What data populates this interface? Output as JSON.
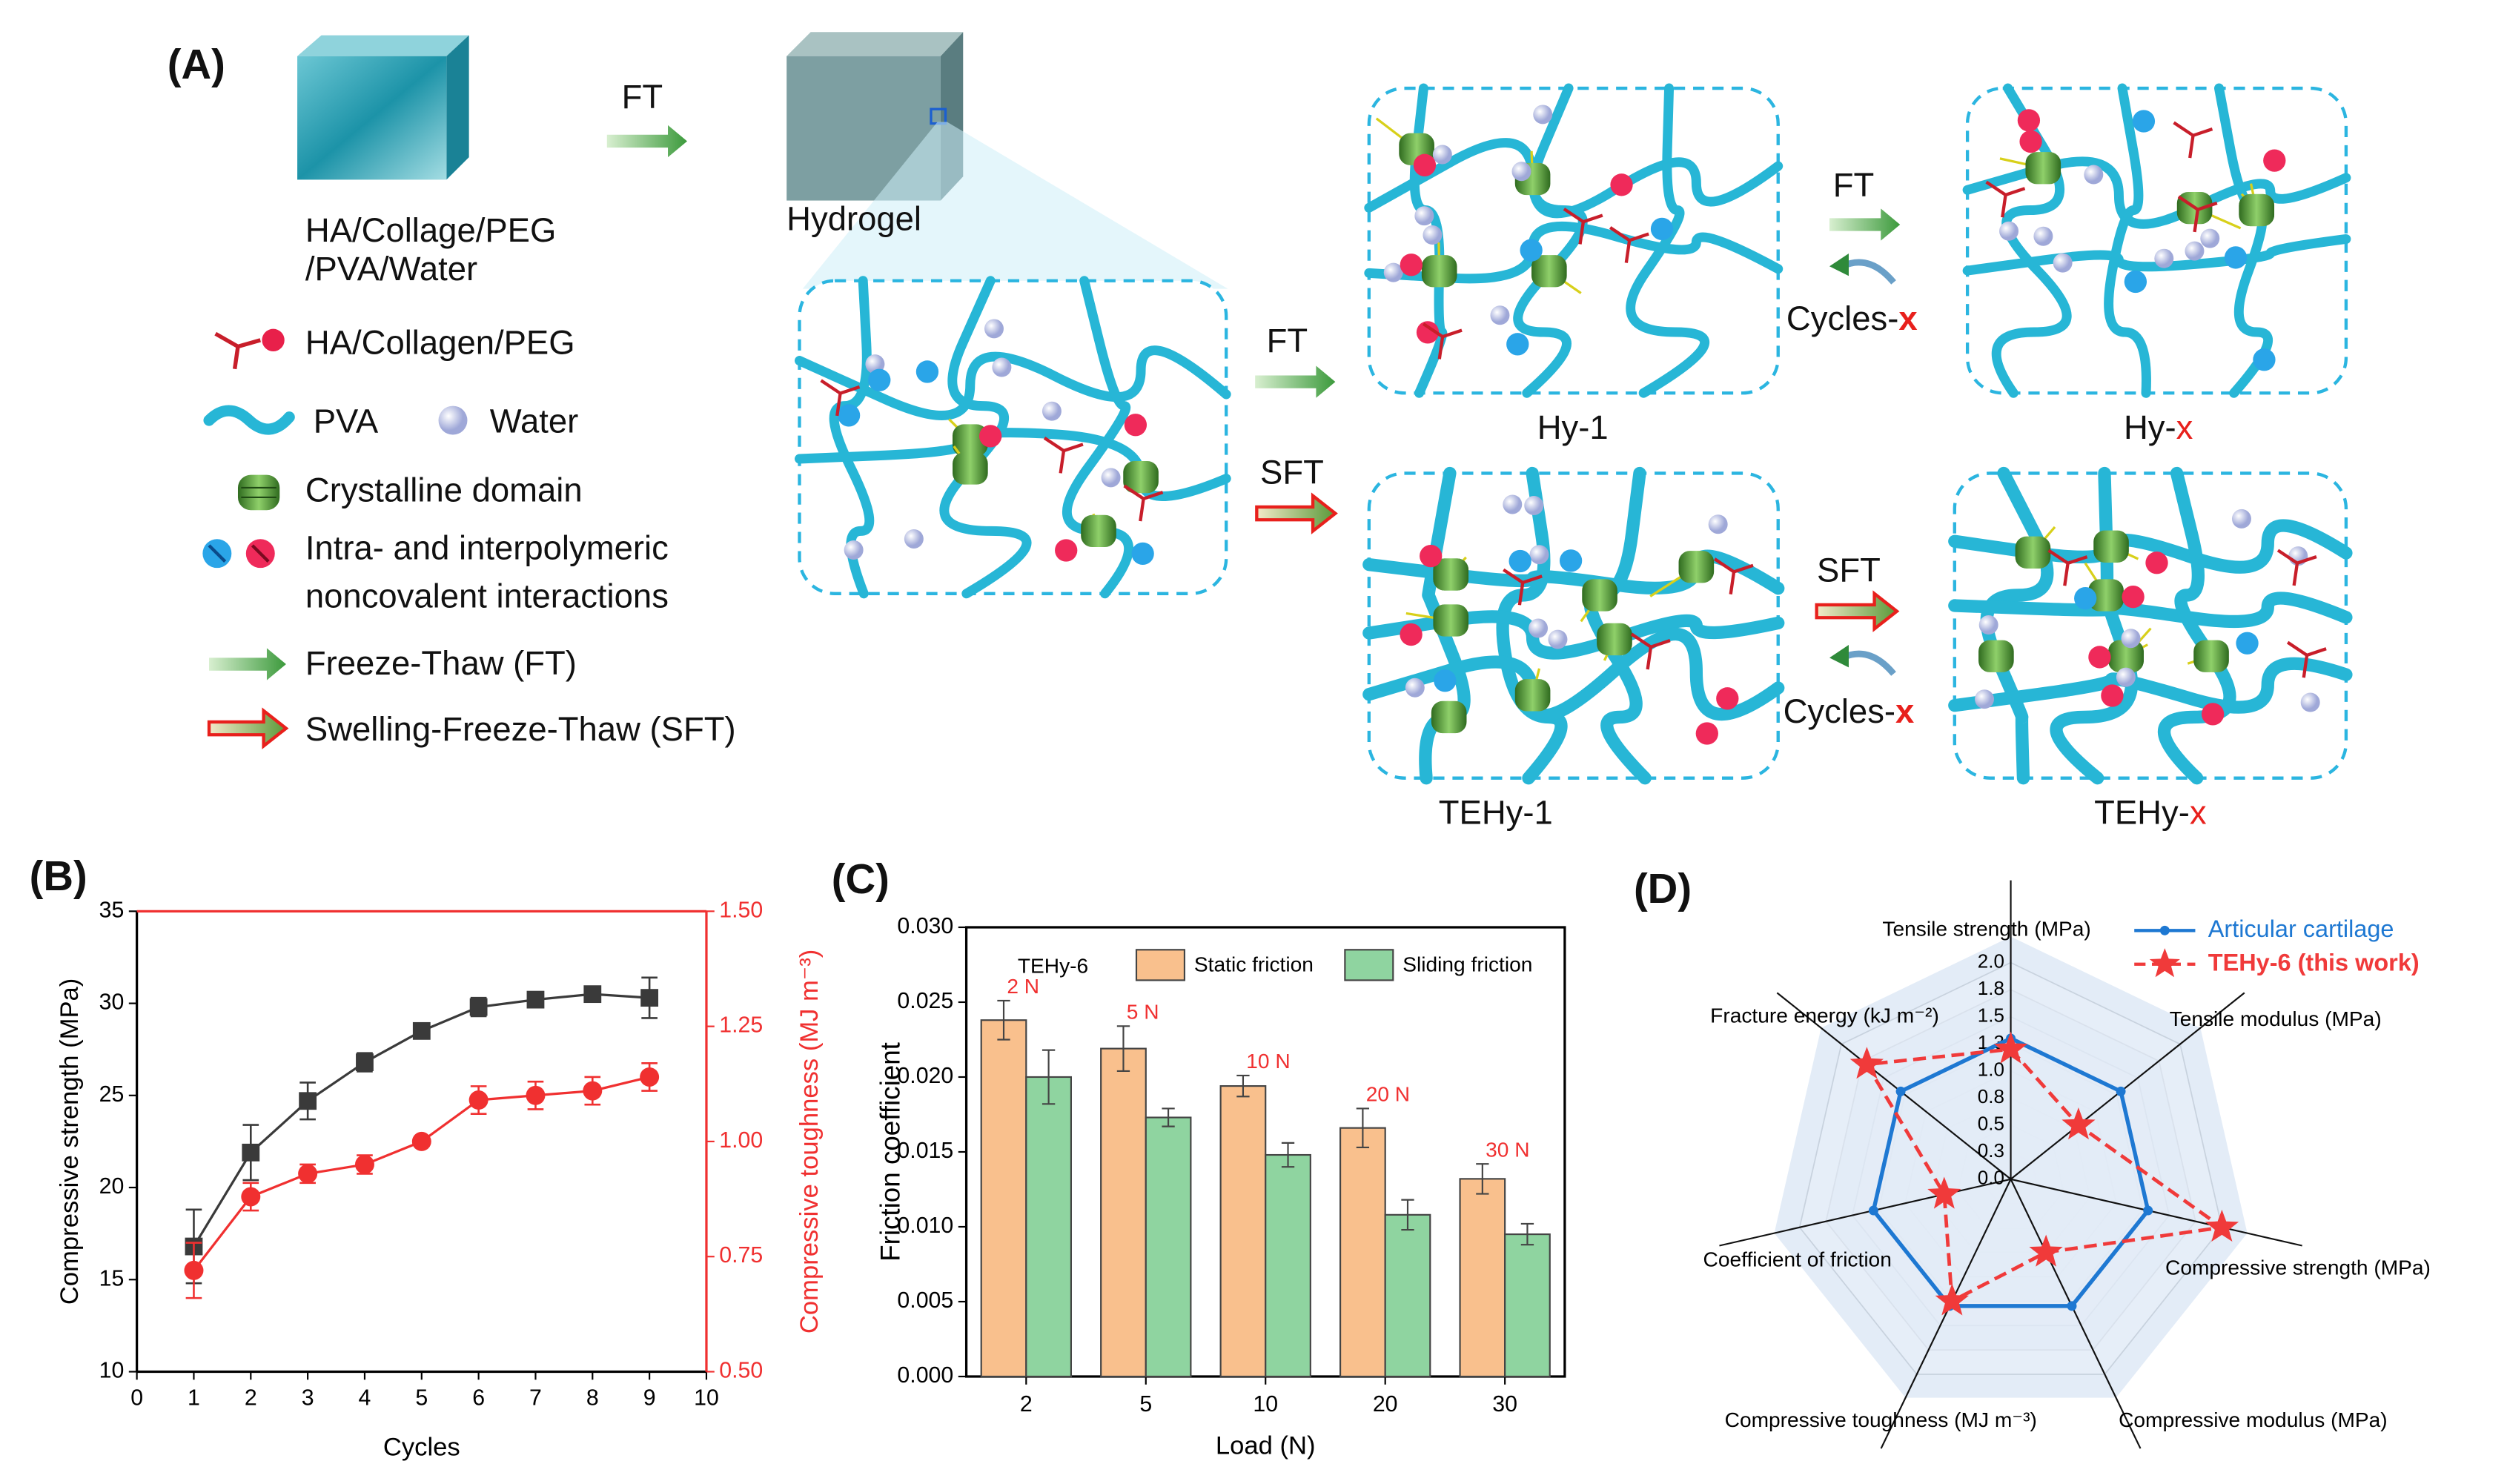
{
  "panel_labels": [
    "(A)",
    "(B)",
    "(C)",
    "(D)"
  ],
  "diagram": {
    "precursor": [
      "HA/Collage/PEG",
      "/PVA/Water"
    ],
    "hydrogel": "Hydrogel",
    "step_ft": "FT",
    "branch_ft": "FT",
    "branch_sft": "SFT",
    "legend": {
      "ha": "HA/Collagen/PEG",
      "pva": "PVA",
      "water": "Water",
      "crystal": "Crystalline domain",
      "interactions": [
        "Intra- and interpolymeric",
        "noncovalent interactions"
      ],
      "ft": "Freeze-Thaw (FT)",
      "sft": "Swelling-Freeze-Thaw (SFT)"
    },
    "hy1": "Hy-1",
    "tehy1": "TEHy-1",
    "cycle_ft": {
      "step": "FT",
      "cycles": "Cycles-",
      "x": "x"
    },
    "cycle_sft": {
      "step": "SFT",
      "cycles": "Cycles-",
      "x": "x"
    },
    "hyx": {
      "name": "Hy-",
      "x": "x"
    },
    "tehyx": {
      "name": "TEHy-",
      "x": "x"
    }
  },
  "chart_data": [
    {
      "type": "line",
      "x": [
        1,
        2,
        3,
        4,
        5,
        6,
        7,
        8,
        9
      ],
      "xlim": [
        0,
        10
      ],
      "xticks": [
        0,
        1,
        2,
        3,
        4,
        5,
        6,
        7,
        8,
        9,
        10
      ],
      "ylim": [
        10,
        35
      ],
      "yticks": [
        10,
        15,
        20,
        25,
        30,
        35
      ],
      "y2lim": [
        0.5,
        1.5
      ],
      "y2ticks": [
        {
          "value": 0.5,
          "label": "0.50"
        },
        0.75,
        {
          "value": 1.0,
          "label": "1.00"
        },
        1.25,
        {
          "value": 1.5,
          "label": "1.50"
        }
      ],
      "xlabel": "Cycles",
      "ylabel": "Compressive strength (MPa)",
      "y2label": "Compressive toughness (MJ m⁻³)",
      "series": [
        {
          "color": "#3a3a3a",
          "marker": "square",
          "values": [
            16.8,
            21.9,
            24.7,
            26.8,
            28.5,
            29.8,
            30.2,
            30.5,
            30.3
          ],
          "errors": [
            2.0,
            1.5,
            1.0,
            0.5,
            0.4,
            0.5,
            0.3,
            0.3,
            1.1
          ]
        },
        {
          "color": "#f03030",
          "marker": "circle",
          "axis": "y2",
          "values": [
            0.72,
            0.88,
            0.93,
            0.95,
            1.0,
            1.09,
            1.1,
            1.11,
            1.14
          ],
          "errors": [
            0.06,
            0.03,
            0.02,
            0.02,
            0.01,
            0.03,
            0.03,
            0.03,
            0.03
          ]
        }
      ]
    },
    {
      "type": "bar",
      "categories": [
        "2",
        "5",
        "10",
        "20",
        "30"
      ],
      "ylim": [
        0,
        0.03
      ],
      "yticks": [
        {
          "value": 0,
          "label": "0.000"
        },
        0.005,
        {
          "value": 0.01,
          "label": "0.010"
        },
        0.015,
        {
          "value": 0.02,
          "label": "0.020"
        },
        0.025,
        {
          "value": 0.03,
          "label": "0.030"
        }
      ],
      "xlabel": "Load (N)",
      "ylabel": "Friction coefficient",
      "note": "TEHy-6",
      "annotations": [
        "2 N",
        "5 N",
        "10 N",
        "20 N",
        "30 N"
      ],
      "annotation_color": "#f03030",
      "series": [
        {
          "name": "Static friction",
          "color": "#f9c08d",
          "values": [
            0.0238,
            0.0219,
            0.0194,
            0.0166,
            0.0132
          ],
          "errors": [
            0.0013,
            0.0015,
            0.0007,
            0.0013,
            0.001
          ]
        },
        {
          "name": "Sliding friction",
          "color": "#8fd4a0",
          "values": [
            0.02,
            0.0173,
            0.0148,
            0.0108,
            0.0095
          ],
          "errors": [
            0.0018,
            0.0006,
            0.0008,
            0.001,
            0.0007
          ]
        }
      ]
    },
    {
      "type": "radar",
      "categories": [
        "Tensile strength (MPa)",
        "Tensile modulus (MPa)",
        "Compressive strength (MPa)",
        "Compressive modulus  (MPa)",
        "Compressive toughness (MJ m⁻³)",
        "Coefficient of friction",
        "Fracture energy (kJ m⁻²)"
      ],
      "rlim": [
        0,
        2
      ],
      "rticks": [
        {
          "value": 0,
          "label": "0.0"
        },
        {
          "value": 0.25,
          "label": "0.3"
        },
        {
          "value": 0.5,
          "label": "0.5"
        },
        {
          "value": 0.75,
          "label": "0.8"
        },
        {
          "value": 1.0,
          "label": "1.0"
        },
        {
          "value": 1.25,
          "label": "1.3"
        },
        {
          "value": 1.5,
          "label": "1.5"
        },
        {
          "value": 1.75,
          "label": "1.8"
        },
        {
          "value": 2.0,
          "label": "2.0"
        }
      ],
      "legend": "top right",
      "series": [
        {
          "name": "Articular cartilage",
          "color": "#1e78d2",
          "marker": "circle",
          "values": [
            1.3,
            1.3,
            1.3,
            1.3,
            1.3,
            1.3,
            1.3
          ]
        },
        {
          "name": "TEHy-6 (this work)",
          "color": "#f03a3a",
          "marker": "star",
          "dashed": true,
          "values": [
            1.2,
            0.8,
            2.0,
            0.75,
            1.25,
            0.63,
            1.7
          ]
        }
      ]
    }
  ]
}
